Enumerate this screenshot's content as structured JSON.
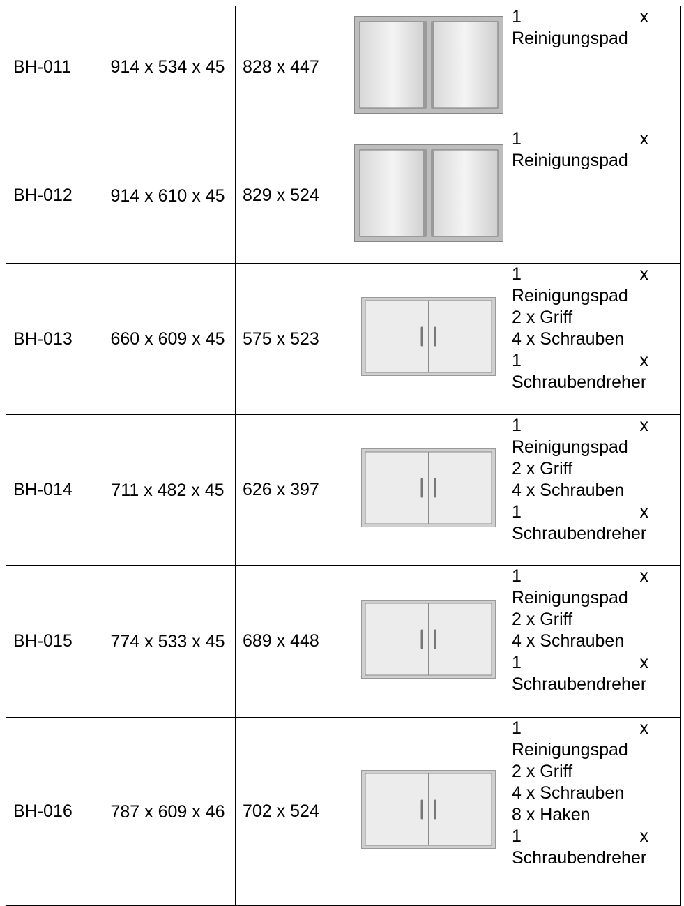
{
  "table": {
    "rows": [
      [
        "BH-011",
        "914 x 534 x 45",
        "828 x 447",
        [
          "1 x Reinigungspad"
        ]
      ],
      [
        "BH-012",
        "914 x 610 x 45",
        "829 x 524",
        [
          "1 x Reinigungspad"
        ]
      ],
      [
        "BH-013",
        "660 x 609 x 45",
        "575 x 523",
        [
          "1 x Reinigungspad",
          "2 x Griff",
          "4 x Schrauben",
          "1 x Schraubendreher"
        ]
      ],
      [
        "BH-014",
        "711 x 482 x 45",
        "626 x 397",
        [
          "1 x Reinigungspad",
          "2 x Griff",
          "4 x Schrauben",
          "1 x Schraubendreher"
        ]
      ],
      [
        "BH-015",
        "774 x 533 x 45",
        "689 x 448",
        [
          "1 x Reinigungspad",
          "2 x Griff",
          "4 x Schrauben",
          "1 x Schraubendreher"
        ]
      ],
      [
        "BH-016",
        "787 x 609 x 46",
        "702 x 524",
        [
          "1 x Reinigungspad",
          "2 x Griff",
          "4 x Schrauben",
          "8 x Haken",
          "1 x Schraubendreher"
        ]
      ]
    ]
  }
}
